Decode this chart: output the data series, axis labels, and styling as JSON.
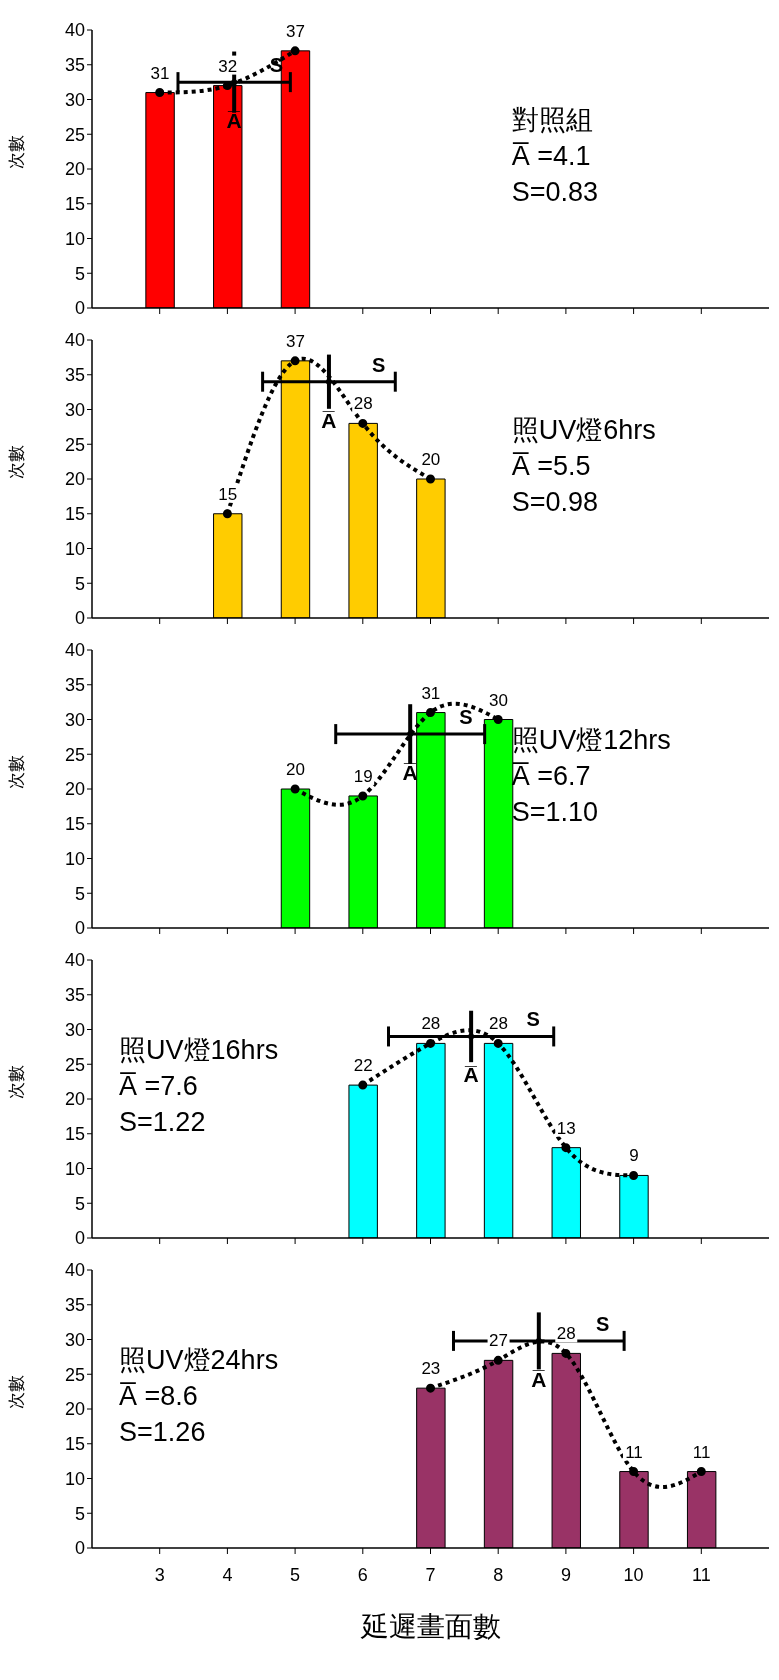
{
  "chart_data": [
    {
      "type": "bar",
      "title": "對照組",
      "ylabel": "次數",
      "x": [
        3,
        4,
        5
      ],
      "xlim": [
        2,
        12
      ],
      "xticks": [
        3,
        4,
        5,
        6,
        7,
        8,
        9,
        10,
        11
      ],
      "ylim": [
        0,
        40
      ],
      "yticks": [
        0,
        5,
        10,
        15,
        20,
        25,
        30,
        35,
        40
      ],
      "tick_labels": "y",
      "series": [
        {
          "color": "#ff0000",
          "values": [
            31,
            32,
            37
          ],
          "data_labels": true
        },
        {
          "type": "line",
          "color": "#000000",
          "line_style": "dotted",
          "marker": "circle",
          "values": [
            31,
            32,
            37
          ]
        },
        {
          "type": "scatter",
          "name": "A̅",
          "color": "#000000",
          "x": [
            4.1
          ],
          "values": [
            32.5
          ],
          "xerrors": [
            0.83
          ],
          "errors": [
            4.4
          ]
        }
      ],
      "annotations": [
        "A̅ =4.1",
        "S=0.83",
        "S"
      ]
    },
    {
      "type": "bar",
      "title": "照UV燈6hrs",
      "ylabel": "次數",
      "x": [
        4,
        5,
        6,
        7
      ],
      "xlim": [
        2,
        12
      ],
      "xticks": [
        3,
        4,
        5,
        6,
        7,
        8,
        9,
        10,
        11
      ],
      "ylim": [
        0,
        40
      ],
      "yticks": [
        0,
        5,
        10,
        15,
        20,
        25,
        30,
        35,
        40
      ],
      "tick_labels": "y",
      "series": [
        {
          "color": "#ffcc00",
          "values": [
            15,
            37,
            28,
            20
          ],
          "data_labels": true
        },
        {
          "type": "line",
          "color": "#000000",
          "line_style": "dotted",
          "marker": "circle",
          "values": [
            15,
            37,
            28,
            20
          ]
        },
        {
          "type": "scatter",
          "name": "A̅",
          "color": "#000000",
          "x": [
            5.5
          ],
          "values": [
            34
          ],
          "xerrors": [
            0.98
          ],
          "errors": [
            3.9
          ]
        }
      ],
      "annotations": [
        "A̅ =5.5",
        "S=0.98",
        "S"
      ]
    },
    {
      "type": "bar",
      "title": "照UV燈12hrs",
      "ylabel": "次數",
      "x": [
        5,
        6,
        7,
        8
      ],
      "xlim": [
        2,
        12
      ],
      "xticks": [
        3,
        4,
        5,
        6,
        7,
        8,
        9,
        10,
        11
      ],
      "ylim": [
        0,
        40
      ],
      "yticks": [
        0,
        5,
        10,
        15,
        20,
        25,
        30,
        35,
        40
      ],
      "tick_labels": "y",
      "series": [
        {
          "color": "#00ff00",
          "values": [
            20,
            19,
            31,
            30
          ],
          "data_labels": true
        },
        {
          "type": "line",
          "color": "#000000",
          "line_style": "dotted",
          "marker": "circle",
          "values": [
            20,
            19,
            31,
            30
          ]
        },
        {
          "type": "scatter",
          "name": "A̅",
          "color": "#000000",
          "x": [
            6.7
          ],
          "values": [
            27.9
          ],
          "xerrors": [
            1.1
          ],
          "errors": [
            4.3
          ]
        }
      ],
      "annotations": [
        "A̅ =6.7",
        "S=1.10",
        "S"
      ]
    },
    {
      "type": "bar",
      "title": "照UV燈16hrs",
      "ylabel": "次數",
      "x": [
        6,
        7,
        8,
        9,
        10
      ],
      "xlim": [
        2,
        12
      ],
      "xticks": [
        3,
        4,
        5,
        6,
        7,
        8,
        9,
        10,
        11
      ],
      "ylim": [
        0,
        40
      ],
      "yticks": [
        0,
        5,
        10,
        15,
        20,
        25,
        30,
        35,
        40
      ],
      "tick_labels": "y",
      "series": [
        {
          "color": "#00ffff",
          "values": [
            22,
            28,
            28,
            13,
            9
          ],
          "data_labels": true
        },
        {
          "type": "line",
          "color": "#000000",
          "line_style": "dotted",
          "marker": "circle",
          "values": [
            22,
            28,
            28,
            13,
            9
          ]
        },
        {
          "type": "scatter",
          "name": "A̅",
          "color": "#000000",
          "x": [
            7.6
          ],
          "values": [
            29
          ],
          "xerrors": [
            1.22
          ],
          "errors": [
            3.7
          ]
        }
      ],
      "annotations": [
        "A̅ =7.6",
        "S=1.22",
        "S"
      ]
    },
    {
      "type": "bar",
      "title": "照UV燈24hrs",
      "ylabel": "次數",
      "xlabel": "延遲畫面數",
      "x": [
        7,
        8,
        9,
        10,
        11
      ],
      "xlim": [
        2,
        12
      ],
      "xticks": [
        3,
        4,
        5,
        6,
        7,
        8,
        9,
        10,
        11
      ],
      "ylim": [
        0,
        40
      ],
      "yticks": [
        0,
        5,
        10,
        15,
        20,
        25,
        30,
        35,
        40
      ],
      "series": [
        {
          "color": "#993366",
          "values": [
            23,
            27,
            28,
            11,
            11
          ],
          "data_labels": true
        },
        {
          "type": "line",
          "color": "#000000",
          "line_style": "dotted",
          "marker": "circle",
          "values": [
            23,
            27,
            28,
            11,
            11
          ]
        },
        {
          "type": "scatter",
          "name": "A̅",
          "color": "#000000",
          "x": [
            8.6
          ],
          "values": [
            29.8
          ],
          "xerrors": [
            1.26
          ],
          "errors": [
            4.1
          ]
        }
      ],
      "annotations": [
        "A̅ =8.6",
        "S=1.26",
        "S"
      ]
    }
  ]
}
